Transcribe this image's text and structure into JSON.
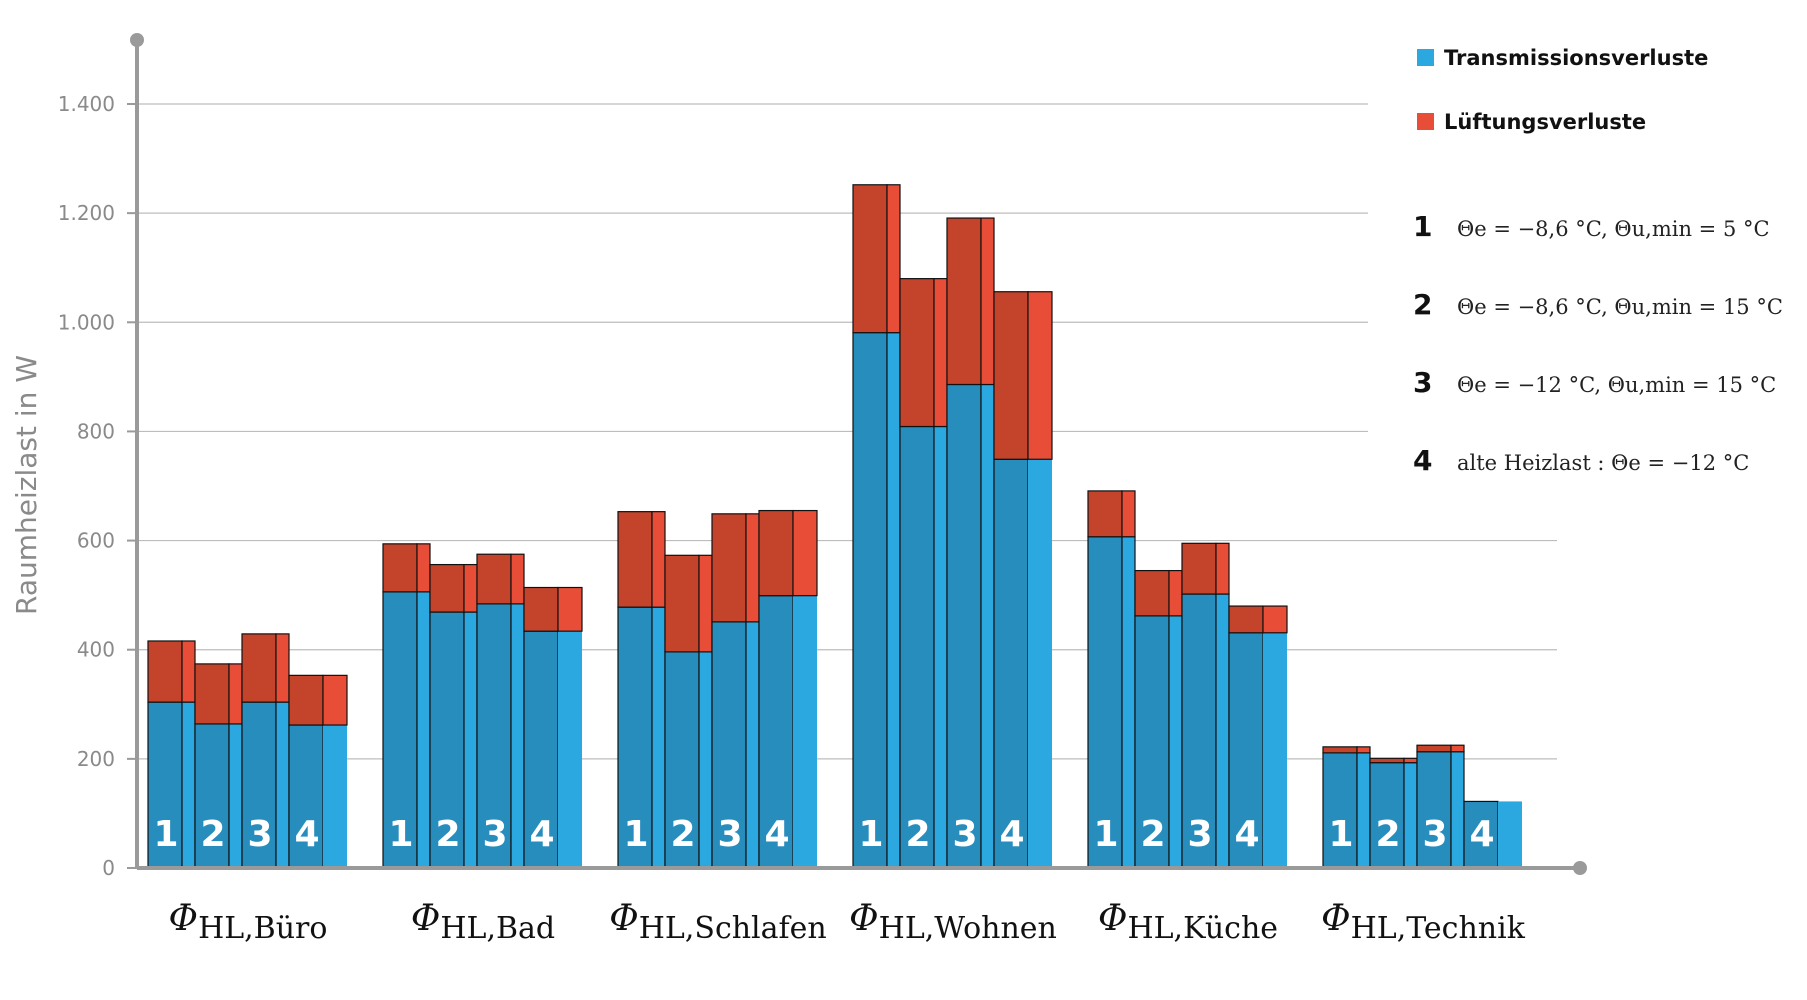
{
  "chart_data": {
    "type": "bar",
    "stacked": true,
    "ylabel": "Raumheizlast in W",
    "ylim": [
      0,
      1400
    ],
    "yticks": [
      0,
      200,
      400,
      600,
      800,
      1000,
      1200,
      1400
    ],
    "ytick_labels": [
      "0",
      "200",
      "400",
      "600",
      "800",
      "1.000",
      "1.200",
      "1.400"
    ],
    "grid": true,
    "legend_position": "top-right",
    "categories": [
      {
        "symbol": "Φ",
        "subscript": "HL,Büro"
      },
      {
        "symbol": "Φ",
        "subscript": "HL,Bad"
      },
      {
        "symbol": "Φ",
        "subscript": "HL,Schlafen"
      },
      {
        "symbol": "Φ",
        "subscript": "HL,Wohnen"
      },
      {
        "symbol": "Φ",
        "subscript": "HL,Küche"
      },
      {
        "symbol": "Φ",
        "subscript": "HL,Technik"
      }
    ],
    "bar_labels": [
      "1",
      "2",
      "3",
      "4"
    ],
    "series": [
      {
        "name": "Transmissionsverluste",
        "color": "#2ca8e0",
        "color_dark": "#278dbd",
        "values": [
          [
            304,
            264,
            304,
            262
          ],
          [
            506,
            469,
            484,
            434
          ],
          [
            478,
            396,
            451,
            499
          ],
          [
            981,
            809,
            886,
            749
          ],
          [
            607,
            462,
            502,
            431
          ],
          [
            211,
            193,
            213,
            122
          ]
        ]
      },
      {
        "name": "Lüftungsverluste",
        "color": "#e84e37",
        "color_dark": "#c3432b",
        "values": [
          [
            112,
            110,
            125,
            91
          ],
          [
            88,
            87,
            91,
            80
          ],
          [
            175,
            177,
            198,
            156
          ],
          [
            271,
            271,
            305,
            307
          ],
          [
            84,
            83,
            93,
            49
          ],
          [
            11,
            8,
            12,
            0
          ]
        ]
      }
    ],
    "totals": [
      [
        416,
        374,
        429,
        353
      ],
      [
        594,
        556,
        575,
        514
      ],
      [
        653,
        573,
        649,
        655
      ],
      [
        1252,
        1080,
        1191,
        1056
      ],
      [
        691,
        545,
        595,
        480
      ],
      [
        222,
        201,
        225,
        122
      ]
    ],
    "scenarios": [
      {
        "n": "1",
        "text": "Θe = −8,6 °C,  Θu,min = 5 °C"
      },
      {
        "n": "2",
        "text": "Θe = −8,6 °C,  Θu,min = 15 °C"
      },
      {
        "n": "3",
        "text": "Θe = −12 °C,  Θu,min = 15 °C"
      },
      {
        "n": "4",
        "text": "alte Heizlast : Θe = −12 °C"
      }
    ]
  }
}
